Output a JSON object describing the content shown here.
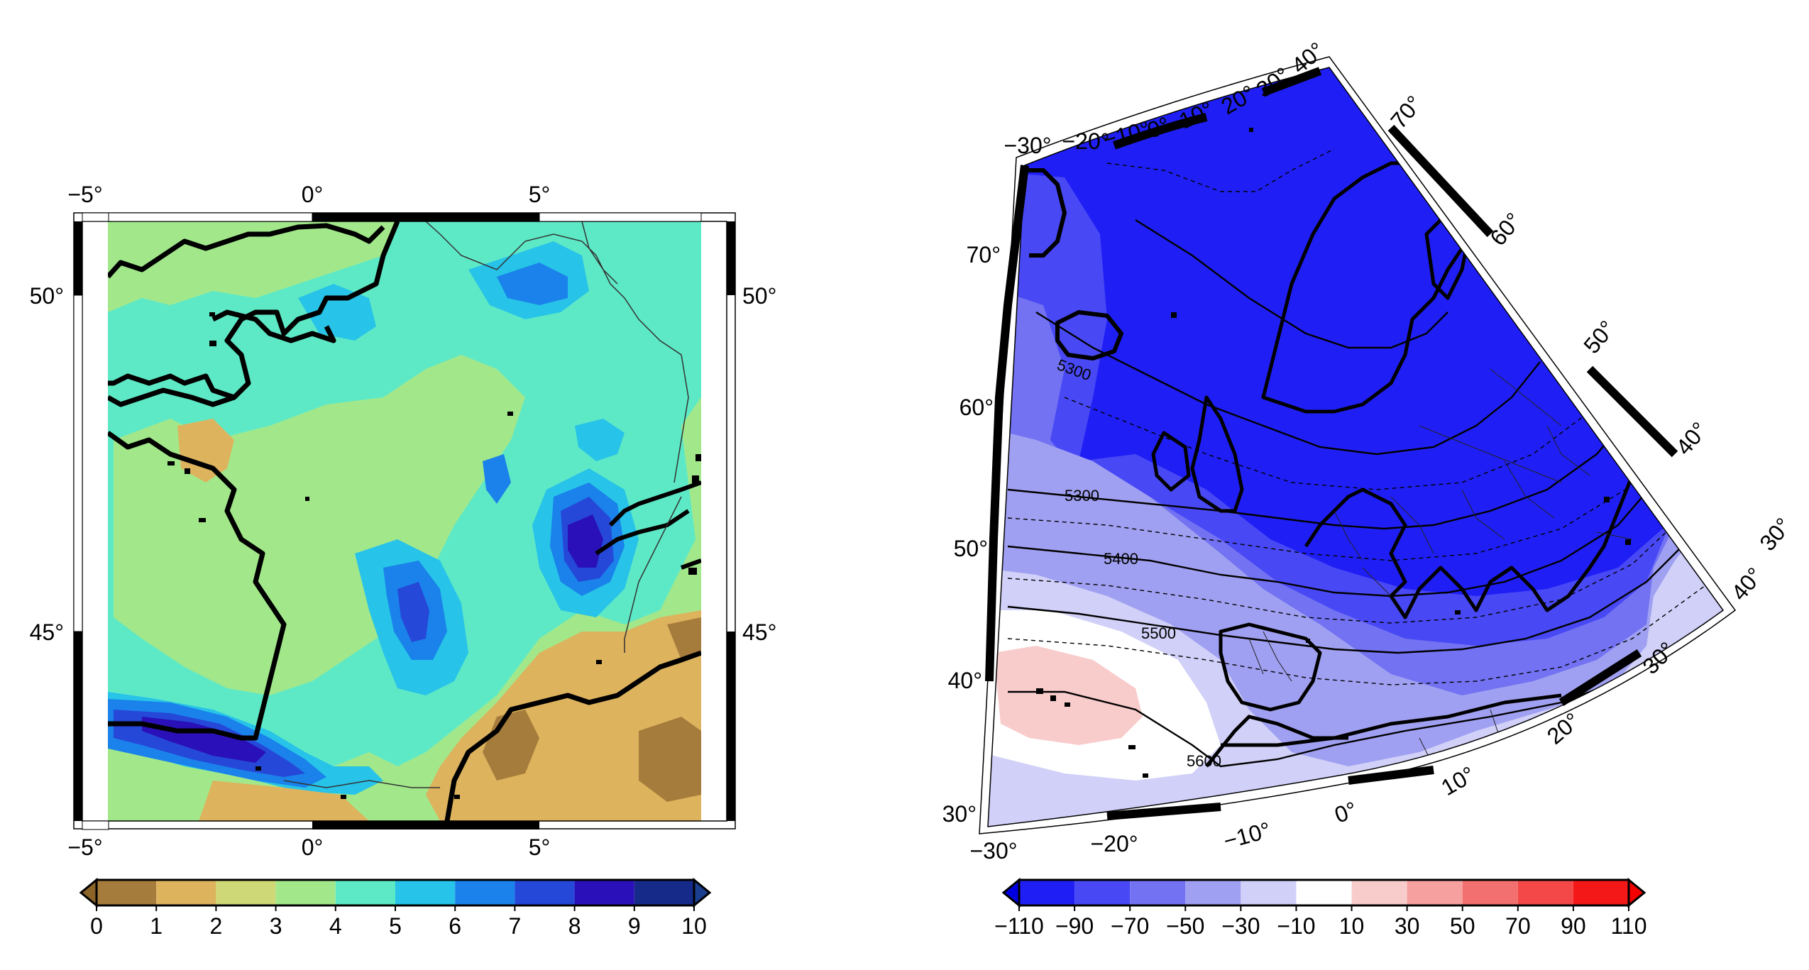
{
  "left_map": {
    "lon_ticks_top": [
      "−5°",
      "0°",
      "5°"
    ],
    "lon_ticks_bottom": [
      "−5°",
      "0°",
      "5°"
    ],
    "lat_ticks_left": [
      "50°",
      "45°"
    ],
    "lat_ticks_right": [
      "50°",
      "45°"
    ],
    "colorbar": {
      "labels": [
        "0",
        "1",
        "2",
        "3",
        "4",
        "5",
        "6",
        "7",
        "8",
        "9",
        "10"
      ],
      "colors": [
        "#a67c3c",
        "#ddb35e",
        "#cfd877",
        "#a2e88a",
        "#5ee9c6",
        "#27c3e8",
        "#1a82ea",
        "#2548d8",
        "#2a10b8",
        "#162a8a"
      ],
      "under_color": "#8c6428",
      "over_color": "#1a3f8f"
    }
  },
  "right_map": {
    "lon_ticks_top": [
      "−30°",
      "−20°",
      "−10°",
      "0°",
      "10°",
      "20°",
      "30°",
      "40°"
    ],
    "lat_ticks_left": [
      "70°",
      "60°",
      "50°",
      "40°",
      "30°"
    ],
    "lon_ticks_bottom": [
      "−30°",
      "−20°",
      "−10°",
      "0°",
      "10°",
      "20°",
      "30°",
      "40°"
    ],
    "lat_ticks_right": [
      "70°",
      "60°",
      "50°",
      "40°",
      "30°"
    ],
    "contour_labels": [
      "5300",
      "5400",
      "5500",
      "5600",
      "5300"
    ],
    "colorbar": {
      "labels": [
        "−110",
        "−90",
        "−70",
        "−50",
        "−30",
        "−10",
        "10",
        "30",
        "50",
        "70",
        "90",
        "110"
      ],
      "colors": [
        "#1f1ff5",
        "#4848f5",
        "#7272f2",
        "#a0a0f2",
        "#d0d0f8",
        "#ffffff",
        "#f9cccc",
        "#f6a0a0",
        "#f27070",
        "#f44848",
        "#f51818"
      ],
      "under_color": "#0000e0",
      "over_color": "#f50000"
    }
  }
}
